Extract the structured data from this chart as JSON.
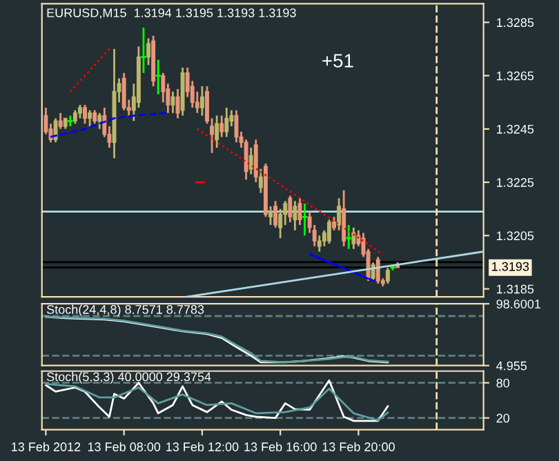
{
  "chart_data": [
    {
      "type": "candlestick",
      "title": "EURUSD,M15  1.3194 1.3195 1.3193 1.3193",
      "x": [
        "2012-02-13T04:00",
        "2012-02-13T04:15",
        "2012-02-13T04:30",
        "2012-02-13T04:45",
        "2012-02-13T05:00",
        "2012-02-13T05:15",
        "2012-02-13T05:30",
        "2012-02-13T05:45",
        "2012-02-13T06:00",
        "2012-02-13T06:15",
        "2012-02-13T06:30",
        "2012-02-13T06:45",
        "2012-02-13T07:00",
        "2012-02-13T07:15",
        "2012-02-13T07:30",
        "2012-02-13T07:45",
        "2012-02-13T08:00",
        "2012-02-13T08:15",
        "2012-02-13T08:30",
        "2012-02-13T08:45",
        "2012-02-13T09:00",
        "2012-02-13T09:15",
        "2012-02-13T09:30",
        "2012-02-13T09:45",
        "2012-02-13T10:00",
        "2012-02-13T10:15",
        "2012-02-13T10:30",
        "2012-02-13T10:45",
        "2012-02-13T11:00",
        "2012-02-13T11:15",
        "2012-02-13T11:30",
        "2012-02-13T11:45",
        "2012-02-13T12:00",
        "2012-02-13T12:15",
        "2012-02-13T12:30",
        "2012-02-13T12:45",
        "2012-02-13T13:00",
        "2012-02-13T13:15",
        "2012-02-13T13:30",
        "2012-02-13T13:45",
        "2012-02-13T14:00",
        "2012-02-13T14:15",
        "2012-02-13T14:30",
        "2012-02-13T14:45",
        "2012-02-13T15:00",
        "2012-02-13T15:15",
        "2012-02-13T15:30",
        "2012-02-13T15:45",
        "2012-02-13T16:00",
        "2012-02-13T16:15",
        "2012-02-13T16:30",
        "2012-02-13T16:45",
        "2012-02-13T17:00",
        "2012-02-13T17:15",
        "2012-02-13T17:30",
        "2012-02-13T17:45",
        "2012-02-13T18:00",
        "2012-02-13T18:15",
        "2012-02-13T18:30",
        "2012-02-13T18:45",
        "2012-02-13T19:00",
        "2012-02-13T19:15",
        "2012-02-13T19:30",
        "2012-02-13T19:45",
        "2012-02-13T20:00",
        "2012-02-13T20:15",
        "2012-02-13T20:30",
        "2012-02-13T20:45",
        "2012-02-13T21:00",
        "2012-02-13T21:15",
        "2012-02-13T21:30",
        "2012-02-13T21:45",
        "2012-02-13T22:00"
      ],
      "ohlc": [
        [
          1.325,
          1.3253,
          1.3243,
          1.3244
        ],
        [
          1.3245,
          1.3247,
          1.324,
          1.3241
        ],
        [
          1.3241,
          1.3249,
          1.324,
          1.3248
        ],
        [
          1.3248,
          1.3251,
          1.3245,
          1.3246
        ],
        [
          1.3246,
          1.3249,
          1.3245,
          1.3249
        ],
        [
          1.3248,
          1.325,
          1.3246,
          1.3248
        ],
        [
          1.3248,
          1.3252,
          1.3247,
          1.3251
        ],
        [
          1.3251,
          1.3254,
          1.3249,
          1.3253
        ],
        [
          1.3253,
          1.3254,
          1.3247,
          1.3249
        ],
        [
          1.3249,
          1.3252,
          1.3246,
          1.3251
        ],
        [
          1.3251,
          1.3252,
          1.3247,
          1.3248
        ],
        [
          1.3248,
          1.3251,
          1.3245,
          1.325
        ],
        [
          1.325,
          1.3253,
          1.3242,
          1.3243
        ],
        [
          1.3243,
          1.3246,
          1.3238,
          1.324
        ],
        [
          1.324,
          1.3275,
          1.3234,
          1.3259
        ],
        [
          1.3259,
          1.3264,
          1.3255,
          1.3262
        ],
        [
          1.3264,
          1.3266,
          1.3252,
          1.3253
        ],
        [
          1.3253,
          1.3256,
          1.325,
          1.3252
        ],
        [
          1.3252,
          1.3262,
          1.3248,
          1.3257
        ],
        [
          1.3255,
          1.3276,
          1.3253,
          1.3272
        ],
        [
          1.3272,
          1.3283,
          1.3266,
          1.3272
        ],
        [
          1.3272,
          1.3279,
          1.3269,
          1.3277
        ],
        [
          1.3278,
          1.328,
          1.3261,
          1.3263
        ],
        [
          1.3265,
          1.3271,
          1.3258,
          1.3265
        ],
        [
          1.3265,
          1.3266,
          1.3255,
          1.3259
        ],
        [
          1.326,
          1.3262,
          1.3251,
          1.3254
        ],
        [
          1.3254,
          1.3259,
          1.3251,
          1.3257
        ],
        [
          1.3257,
          1.326,
          1.3249,
          1.3251
        ],
        [
          1.3252,
          1.3268,
          1.325,
          1.3266
        ],
        [
          1.3266,
          1.3268,
          1.3257,
          1.3259
        ],
        [
          1.3261,
          1.3263,
          1.3253,
          1.3255
        ],
        [
          1.3255,
          1.3259,
          1.3251,
          1.3253
        ],
        [
          1.3253,
          1.3261,
          1.325,
          1.3257
        ],
        [
          1.3259,
          1.3261,
          1.3247,
          1.3248
        ],
        [
          1.3246,
          1.3249,
          1.3236,
          1.3243
        ],
        [
          1.3241,
          1.325,
          1.3238,
          1.3247
        ],
        [
          1.3247,
          1.325,
          1.3242,
          1.3244
        ],
        [
          1.3244,
          1.3253,
          1.3242,
          1.3249
        ],
        [
          1.3248,
          1.3252,
          1.3246,
          1.325
        ],
        [
          1.325,
          1.3252,
          1.324,
          1.3242
        ],
        [
          1.3242,
          1.3244,
          1.3238,
          1.324
        ],
        [
          1.324,
          1.3241,
          1.3226,
          1.3229
        ],
        [
          1.323,
          1.3238,
          1.3228,
          1.3235
        ],
        [
          1.3239,
          1.3241,
          1.3225,
          1.3227
        ],
        [
          1.3223,
          1.323,
          1.3221,
          1.3227
        ],
        [
          1.3231,
          1.3232,
          1.3212,
          1.3213
        ],
        [
          1.3212,
          1.3216,
          1.3209,
          1.3214
        ],
        [
          1.3216,
          1.3218,
          1.3208,
          1.3209
        ],
        [
          1.3208,
          1.3215,
          1.3204,
          1.3213
        ],
        [
          1.3213,
          1.3218,
          1.3209,
          1.3217
        ],
        [
          1.3219,
          1.322,
          1.321,
          1.3212
        ],
        [
          1.3211,
          1.3218,
          1.3207,
          1.3216
        ],
        [
          1.3217,
          1.3219,
          1.3209,
          1.3211
        ],
        [
          1.3212,
          1.3217,
          1.3205,
          1.3212
        ],
        [
          1.3212,
          1.3214,
          1.3206,
          1.3208
        ],
        [
          1.3207,
          1.3209,
          1.3201,
          1.3203
        ],
        [
          1.3201,
          1.3205,
          1.3199,
          1.3203
        ],
        [
          1.3203,
          1.3207,
          1.3201,
          1.3206
        ],
        [
          1.3203,
          1.3211,
          1.3202,
          1.321
        ],
        [
          1.321,
          1.3212,
          1.3207,
          1.3208
        ],
        [
          1.3209,
          1.3219,
          1.3207,
          1.3216
        ],
        [
          1.3215,
          1.3222,
          1.3201,
          1.3203
        ],
        [
          1.3204,
          1.3209,
          1.32,
          1.3204
        ],
        [
          1.3202,
          1.3208,
          1.32,
          1.3206
        ],
        [
          1.3205,
          1.3207,
          1.3201,
          1.3202
        ],
        [
          1.3204,
          1.3206,
          1.3197,
          1.3198
        ],
        [
          1.3199,
          1.32,
          1.3188,
          1.3189
        ],
        [
          1.3189,
          1.3195,
          1.3188,
          1.3194
        ],
        [
          1.3196,
          1.3197,
          1.3187,
          1.3188
        ],
        [
          1.3188,
          1.3189,
          1.3186,
          1.3187
        ],
        [
          1.3188,
          1.3193,
          1.3187,
          1.3192
        ],
        [
          1.3193,
          1.3194,
          1.3192,
          1.3193
        ],
        [
          1.3194,
          1.3195,
          1.3193,
          1.3193
        ]
      ],
      "colors": [
        "#e9967a",
        "#e9967a",
        "#bdb76b",
        "#e9967a",
        "#bdb76b",
        "#00ff00",
        "#bdb76b",
        "#bdb76b",
        "#e9967a",
        "#bdb76b",
        "#e9967a",
        "#bdb76b",
        "#e9967a",
        "#e9967a",
        "#bdb76b",
        "#bdb76b",
        "#e9967a",
        "#e9967a",
        "#bdb76b",
        "#bdb76b",
        "#00ff00",
        "#bdb76b",
        "#e9967a",
        "#00ff00",
        "#e9967a",
        "#e9967a",
        "#bdb76b",
        "#e9967a",
        "#bdb76b",
        "#e9967a",
        "#e9967a",
        "#e9967a",
        "#bdb76b",
        "#e9967a",
        "#e9967a",
        "#bdb76b",
        "#e9967a",
        "#bdb76b",
        "#bdb76b",
        "#e9967a",
        "#e9967a",
        "#e9967a",
        "#bdb76b",
        "#e9967a",
        "#bdb76b",
        "#e9967a",
        "#bdb76b",
        "#e9967a",
        "#bdb76b",
        "#bdb76b",
        "#e9967a",
        "#bdb76b",
        "#e9967a",
        "#00ff00",
        "#e9967a",
        "#e9967a",
        "#bdb76b",
        "#bdb76b",
        "#bdb76b",
        "#e9967a",
        "#bdb76b",
        "#e9967a",
        "#00ff00",
        "#bdb76b",
        "#e9967a",
        "#e9967a",
        "#e9967a",
        "#bdb76b",
        "#e9967a",
        "#e9967a",
        "#bdb76b",
        "#00ff00",
        "#e9967a"
      ],
      "series": [
        {
          "type": "line",
          "color": "#ff0000",
          "line_style": "dotted",
          "x": [
            "2012-02-13T05:15",
            "2012-02-13T07:15"
          ],
          "values": [
            1.3259,
            1.3275
          ]
        },
        {
          "type": "line",
          "color": "#ff0000",
          "line_style": "dotted",
          "x": [
            "2012-02-13T11:45",
            "2012-02-13T21:15"
          ],
          "values": [
            1.3245,
            1.3198
          ]
        },
        {
          "type": "line",
          "color": "#ff0000",
          "line_style": "solid",
          "x": [
            "2012-02-13T11:42",
            "2012-02-13T12:06"
          ],
          "values": [
            1.3225,
            1.3225
          ]
        },
        {
          "type": "line",
          "color": "#0000ff",
          "line_style": "dashed",
          "x": [
            "2012-02-13T04:14",
            "2012-02-13T06:00",
            "2012-02-13T07:30",
            "2012-02-13T08:30",
            "2012-02-13T10:16"
          ],
          "values": [
            1.3242,
            1.3245,
            1.3249,
            1.325,
            1.3251
          ]
        },
        {
          "type": "line",
          "color": "#0000ff",
          "line_style": "solid",
          "x": [
            "2012-02-13T17:31",
            "2012-02-13T20:47"
          ],
          "values": [
            1.3198,
            1.3188
          ]
        },
        {
          "type": "line",
          "color": "#add8e6",
          "line_style": "solid",
          "x": [
            "2012-02-13T11:12",
            "2012-02-14T02:24"
          ],
          "values": [
            1.3182,
            1.3199
          ]
        }
      ],
      "ref_lines": [
        {
          "axis": "y",
          "value": 1.3214,
          "color": "#b0e0e6"
        },
        {
          "axis": "y",
          "value": 1.3195,
          "color": "#000000"
        },
        {
          "axis": "y",
          "value": 1.3193,
          "color": "#000000",
          "label": "1.3193"
        },
        {
          "axis": "x",
          "value": "2012-02-14T00:00",
          "color": "#f5deb3",
          "line_style": "dashed"
        }
      ],
      "annotations": [
        "+51"
      ],
      "xlim": [
        "2012-02-13T03:48",
        "2012-02-14T02:24"
      ],
      "ylim": [
        1.3182,
        1.3292
      ],
      "yticks": [
        1.3285,
        1.3265,
        1.3245,
        1.3225,
        1.3205,
        1.3185
      ],
      "tick_labels": "y",
      "grid": false,
      "legend": false
    },
    {
      "type": "line",
      "title": "Stoch(24,4,8) 8.7571 8.7783",
      "series": [
        {
          "color": "#ffffff",
          "x": [
            "2012-02-13T04:00",
            "2012-02-13T05:00",
            "2012-02-13T07:00",
            "2012-02-13T08:00",
            "2012-02-13T09:00",
            "2012-02-13T10:00",
            "2012-02-13T11:00",
            "2012-02-13T12:15",
            "2012-02-13T13:00",
            "2012-02-13T13:45",
            "2012-02-13T14:30",
            "2012-02-13T15:00",
            "2012-02-13T16:15",
            "2012-02-13T17:15",
            "2012-02-13T18:30",
            "2012-02-13T19:15",
            "2012-02-13T19:45",
            "2012-02-13T20:30",
            "2012-02-13T21:30"
          ],
          "values": [
            79,
            77,
            75,
            72,
            67,
            62,
            57,
            53,
            47,
            33,
            20,
            10,
            10,
            12,
            16,
            19,
            17,
            12,
            10
          ]
        },
        {
          "color": "#5f9ea0",
          "x": [
            "2012-02-13T04:00",
            "2012-02-13T05:00",
            "2012-02-13T07:00",
            "2012-02-13T08:00",
            "2012-02-13T09:00",
            "2012-02-13T10:00",
            "2012-02-13T11:00",
            "2012-02-13T12:15",
            "2012-02-13T13:00",
            "2012-02-13T13:45",
            "2012-02-13T14:30",
            "2012-02-13T15:00",
            "2012-02-13T16:15",
            "2012-02-13T17:15",
            "2012-02-13T18:30",
            "2012-02-13T19:15",
            "2012-02-13T19:45",
            "2012-02-13T20:30",
            "2012-02-13T21:30"
          ],
          "values": [
            79,
            78,
            76,
            73,
            68,
            63,
            58,
            54,
            49,
            36,
            24,
            12,
            10,
            12,
            15,
            18,
            18,
            13,
            11
          ]
        }
      ],
      "ref_lines": [
        {
          "axis": "y",
          "value": 80,
          "color": "#5f7f7f",
          "line_style": "dashed"
        },
        {
          "axis": "y",
          "value": 20,
          "color": "#5f7f7f",
          "line_style": "dashed"
        },
        {
          "axis": "x",
          "value": "2012-02-14T00:00",
          "color": "#f5deb3",
          "line_style": "dashed"
        }
      ],
      "xlim": [
        "2012-02-13T03:48",
        "2012-02-14T02:24"
      ],
      "ylim": [
        4.955,
        98.6001
      ],
      "yticks": [
        4.955,
        98.6001
      ],
      "tick_labels": "y",
      "grid": false,
      "legend": false
    },
    {
      "type": "line",
      "title": "Stoch(5,3,3) 40.0000 29.3754",
      "series": [
        {
          "color": "#ffffff",
          "x": [
            "2012-02-13T04:00",
            "2012-02-13T04:30",
            "2012-02-13T05:30",
            "2012-02-13T06:00",
            "2012-02-13T06:45",
            "2012-02-13T07:15",
            "2012-02-13T07:30",
            "2012-02-13T08:00",
            "2012-02-13T08:45",
            "2012-02-13T09:30",
            "2012-02-13T09:45",
            "2012-02-13T10:30",
            "2012-02-13T11:00",
            "2012-02-13T11:30",
            "2012-02-13T12:15",
            "2012-02-13T13:00",
            "2012-02-13T13:30",
            "2012-02-13T14:15",
            "2012-02-13T14:45",
            "2012-02-13T15:45",
            "2012-02-13T16:15",
            "2012-02-13T16:45",
            "2012-02-13T17:30",
            "2012-02-13T18:30",
            "2012-02-13T19:15",
            "2012-02-13T19:45",
            "2012-02-13T21:00",
            "2012-02-13T21:30"
          ],
          "values": [
            76,
            65,
            72,
            65,
            38,
            22,
            61,
            53,
            80,
            45,
            28,
            42,
            74,
            42,
            30,
            48,
            34,
            25,
            22,
            20,
            45,
            35,
            34,
            84,
            22,
            15,
            15,
            40
          ]
        },
        {
          "color": "#5f9ea0",
          "x": [
            "2012-02-13T04:00",
            "2012-02-13T05:30",
            "2012-02-13T06:45",
            "2012-02-13T07:30",
            "2012-02-13T08:45",
            "2012-02-13T09:45",
            "2012-02-13T11:00",
            "2012-02-13T12:15",
            "2012-02-13T13:30",
            "2012-02-13T14:45",
            "2012-02-13T16:15",
            "2012-02-13T17:30",
            "2012-02-13T18:30",
            "2012-02-13T19:45",
            "2012-02-13T21:00",
            "2012-02-13T21:30"
          ],
          "values": [
            78,
            74,
            55,
            55,
            72,
            45,
            60,
            42,
            45,
            28,
            30,
            38,
            70,
            28,
            16,
            29
          ]
        }
      ],
      "ref_lines": [
        {
          "axis": "y",
          "value": 80,
          "color": "#5f7f7f",
          "line_style": "dashed"
        },
        {
          "axis": "y",
          "value": 20,
          "color": "#5f7f7f",
          "line_style": "dashed"
        },
        {
          "axis": "x",
          "value": "2012-02-14T00:00",
          "color": "#f5deb3",
          "line_style": "dashed"
        }
      ],
      "xlim": [
        "2012-02-13T03:48",
        "2012-02-14T02:24"
      ],
      "ylim": [
        0,
        100
      ],
      "xticks": [
        {
          "value": "2012-02-13T04:00",
          "label": "13 Feb 2012"
        },
        {
          "value": "2012-02-13T08:00",
          "label": "13 Feb 08:00"
        },
        {
          "value": "2012-02-13T12:00",
          "label": "13 Feb 12:00"
        },
        {
          "value": "2012-02-13T16:00",
          "label": "13 Feb 16:00"
        },
        {
          "value": "2012-02-13T20:00",
          "label": "13 Feb 20:00"
        }
      ],
      "yticks": [
        20,
        80
      ],
      "grid": false,
      "legend": false
    }
  ]
}
